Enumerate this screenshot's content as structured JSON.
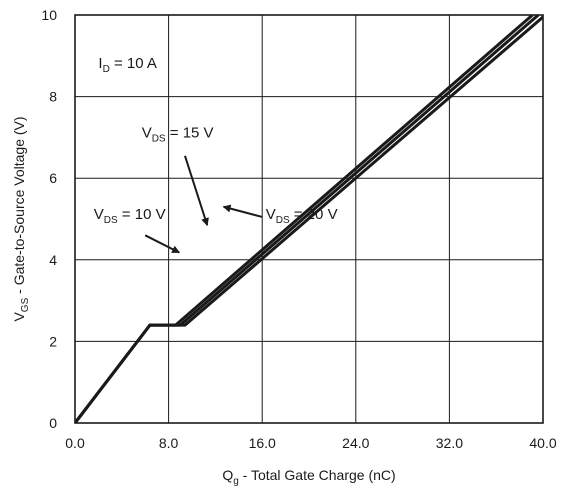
{
  "chart_data": {
    "type": "line",
    "xlabel": {
      "main": "Q",
      "sub": "g",
      "rest": " - Total Gate Charge (nC)"
    },
    "ylabel": {
      "main": "V",
      "sub": "GS",
      "rest": " - Gate-to-Source Voltage (V)"
    },
    "xlim": [
      0,
      40
    ],
    "ylim": [
      0,
      10
    ],
    "x_ticks": [
      "0.0",
      "8.0",
      "16.0",
      "24.0",
      "32.0",
      "40.0"
    ],
    "y_ticks": [
      "0",
      "2",
      "4",
      "6",
      "8",
      "10"
    ],
    "grid": true,
    "line_color": "#1a1a1a",
    "series": [
      {
        "name": "V_DS = 10 V",
        "x": [
          0,
          6.4,
          8.6,
          39.1
        ],
        "y": [
          0,
          2.4,
          2.4,
          10
        ]
      },
      {
        "name": "V_DS = 15 V",
        "x": [
          0,
          6.4,
          9.0,
          39.6
        ],
        "y": [
          0,
          2.4,
          2.4,
          10
        ]
      },
      {
        "name": "V_DS = 20 V",
        "x": [
          0,
          6.4,
          9.4,
          40.2
        ],
        "y": [
          0,
          2.4,
          2.4,
          10
        ]
      }
    ],
    "annotations": [
      {
        "id": "id",
        "main": "I",
        "sub": "D",
        "rest": " = 10 A",
        "x": 2.0,
        "y": 8.7
      },
      {
        "id": "vds15",
        "main": "V",
        "sub": "DS",
        "rest": " = 15 V",
        "x": 5.7,
        "y": 7.0,
        "arrow_from": [
          9.4,
          6.55
        ],
        "arrow_to": [
          11.3,
          4.85
        ]
      },
      {
        "id": "vds10",
        "main": "V",
        "sub": "DS",
        "rest": " = 10 V",
        "x": 1.6,
        "y": 5.0,
        "arrow_from": [
          6.0,
          4.6
        ],
        "arrow_to": [
          8.9,
          4.18
        ]
      },
      {
        "id": "vds20",
        "main": "V",
        "sub": "DS",
        "rest": " = 20 V",
        "x": 16.3,
        "y": 5.0,
        "arrow_from": [
          16.0,
          5.05
        ],
        "arrow_to": [
          12.7,
          5.3
        ]
      }
    ]
  }
}
